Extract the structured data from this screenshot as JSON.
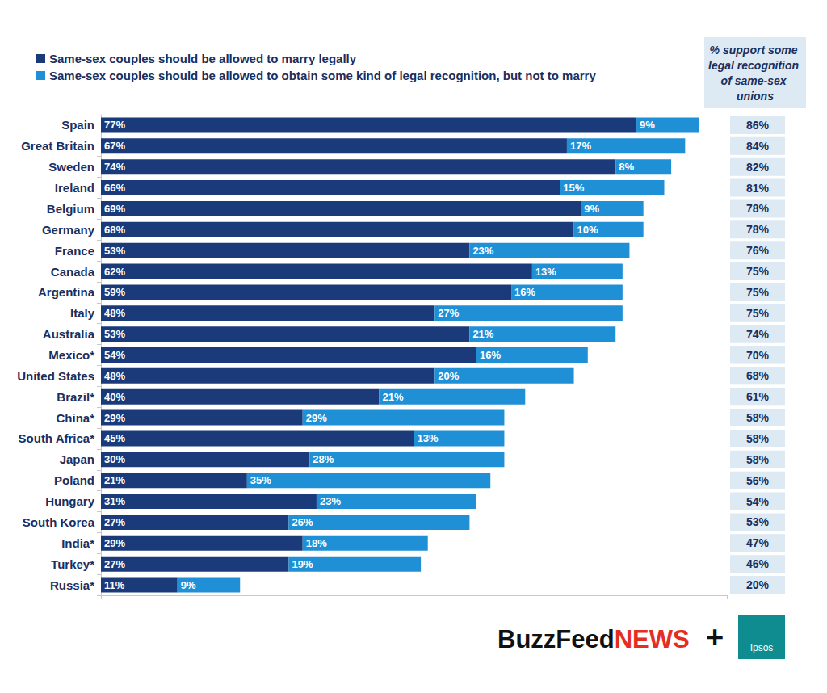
{
  "chart_data": {
    "type": "bar",
    "orientation": "horizontal",
    "stacked": true,
    "data_labels": true,
    "grid": false,
    "tick_labels": "y",
    "legend": "upper left",
    "categories": [
      "Spain",
      "Great Britain",
      "Sweden",
      "Ireland",
      "Belgium",
      "Germany",
      "France",
      "Canada",
      "Argentina",
      "Italy",
      "Australia",
      "Mexico*",
      "United States",
      "Brazil*",
      "China*",
      "South Africa*",
      "Japan",
      "Poland",
      "Hungary",
      "South Korea",
      "India*",
      "Turkey*",
      "Russia*"
    ],
    "series": [
      {
        "name": "Same-sex couples should be allowed to marry legally",
        "color": "#1b3a7a",
        "values": [
          77,
          67,
          74,
          66,
          69,
          68,
          53,
          62,
          59,
          48,
          53,
          54,
          48,
          40,
          29,
          45,
          30,
          21,
          31,
          27,
          29,
          27,
          11
        ],
        "value_labels": [
          "77%",
          "67%",
          "74%",
          "66%",
          "69%",
          "68%",
          "53%",
          "62%",
          "59%",
          "48%",
          "53%",
          "54%",
          "48%",
          "40%",
          "29%",
          "45%",
          "30%",
          "21%",
          "31%",
          "27%",
          "29%",
          "27%",
          "11%"
        ]
      },
      {
        "name": "Same-sex couples should be allowed to obtain some kind of legal recognition, but not to marry",
        "color": "#1f8fd6",
        "values": [
          9,
          17,
          8,
          15,
          9,
          10,
          23,
          13,
          16,
          27,
          21,
          16,
          20,
          21,
          29,
          13,
          28,
          35,
          23,
          26,
          18,
          19,
          9
        ],
        "value_labels": [
          "9%",
          "17%",
          "8%",
          "15%",
          "9%",
          "10%",
          "23%",
          "13%",
          "16%",
          "27%",
          "21%",
          "16%",
          "20%",
          "21%",
          "29%",
          "13%",
          "28%",
          "35%",
          "23%",
          "26%",
          "18%",
          "19%",
          "9%"
        ]
      }
    ],
    "xlim": [
      0,
      90
    ],
    "xticks": [
      0,
      90
    ],
    "totals": {
      "title": "% support some legal recognition of same-sex unions",
      "values": [
        86,
        84,
        82,
        81,
        78,
        78,
        76,
        75,
        75,
        75,
        74,
        70,
        68,
        61,
        58,
        58,
        58,
        56,
        54,
        53,
        47,
        46,
        20
      ],
      "value_labels": [
        "86%",
        "84%",
        "82%",
        "81%",
        "78%",
        "78%",
        "76%",
        "75%",
        "75%",
        "75%",
        "74%",
        "70%",
        "68%",
        "61%",
        "58%",
        "58%",
        "58%",
        "56%",
        "54%",
        "53%",
        "47%",
        "46%",
        "20%"
      ]
    },
    "credits": {
      "source": "BuzzFeed",
      "source_suffix": "NEWS",
      "joiner": "+",
      "partner": "Ipsos"
    }
  }
}
